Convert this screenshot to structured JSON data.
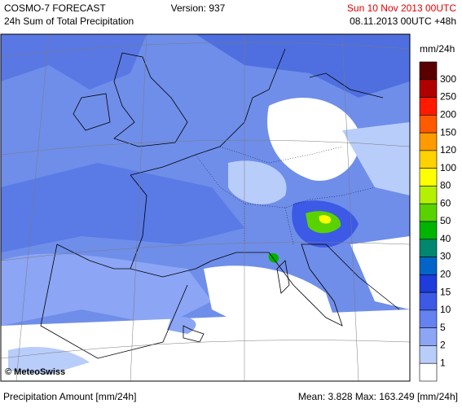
{
  "header": {
    "title": "COSMO-7 FORECAST",
    "subtitle": "24h Sum of Total Precipitation",
    "version": "Version: 937",
    "valid_time": "Sun 10 Nov 2013 00UTC",
    "run": "08.11.2013 00UTC +48h"
  },
  "legend": {
    "unit": "mm/24h",
    "levels": [
      300,
      250,
      200,
      150,
      120,
      100,
      80,
      60,
      50,
      40,
      30,
      20,
      15,
      10,
      5,
      2,
      1
    ],
    "colors": [
      "#5a0000",
      "#b00000",
      "#ff1a00",
      "#ff5a00",
      "#ff9a00",
      "#ffd200",
      "#ffff00",
      "#b4f000",
      "#5ad200",
      "#00b400",
      "#00876e",
      "#0064c8",
      "#1e3cdc",
      "#3c5ae6",
      "#6482f0",
      "#8ca5f5",
      "#b9cdfa",
      "#ffffff"
    ]
  },
  "map": {
    "copyright": "© MeteoSwiss"
  },
  "footer": {
    "left": "Precipitation Amount [mm/24h]",
    "right": "Mean:  3.828 Max: 163.249 [mm/24h]"
  }
}
